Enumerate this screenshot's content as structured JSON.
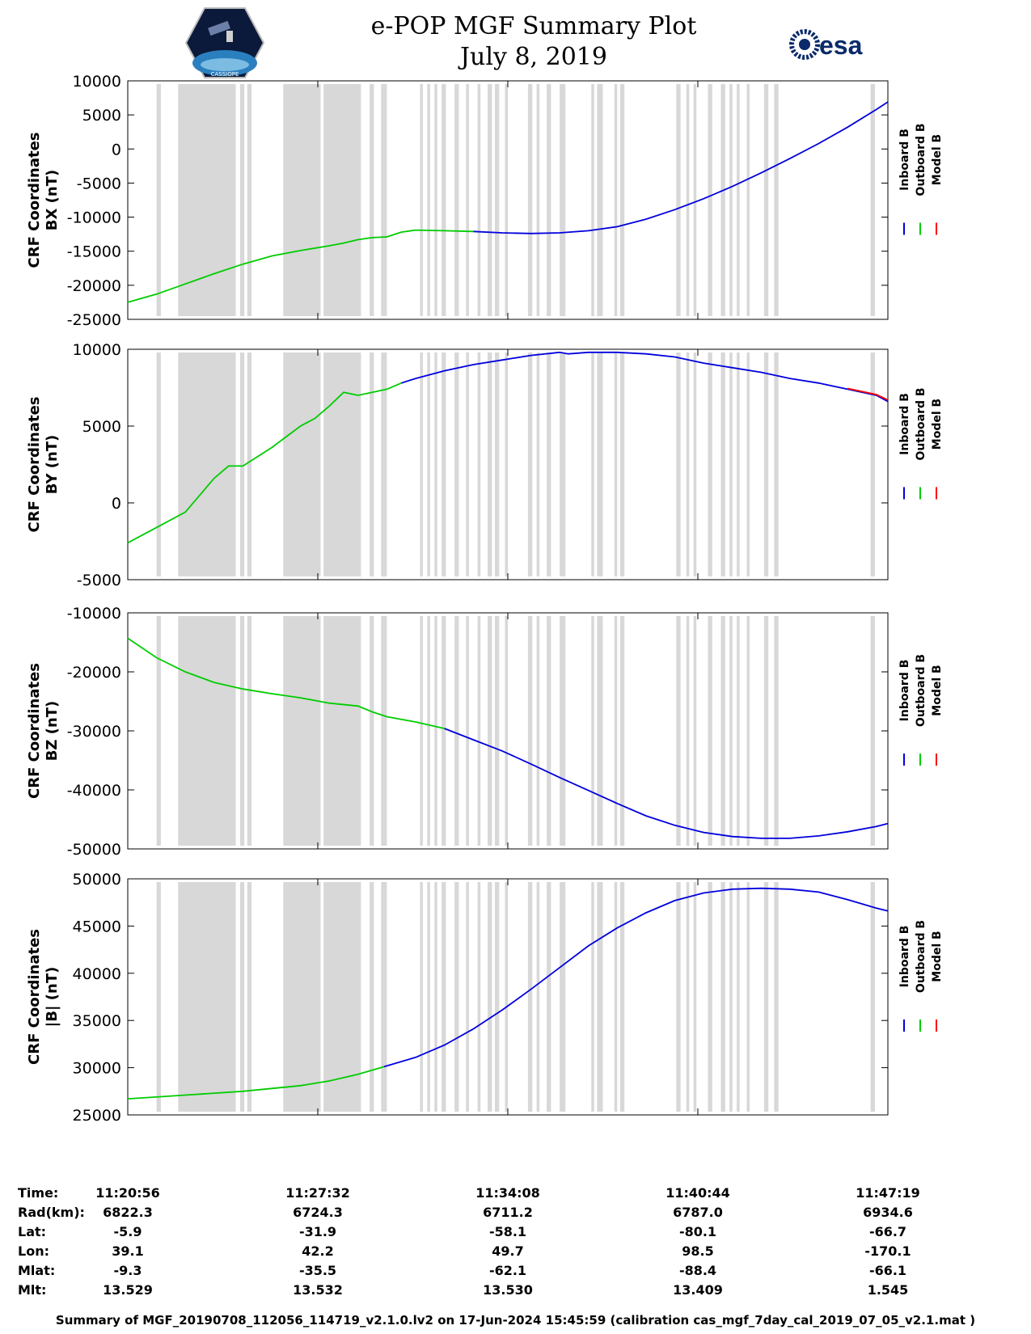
{
  "header": {
    "title": "e-POP MGF Summary Plot",
    "date": "July 8, 2019",
    "logo_left_text": "CASSIOPE",
    "logo_right_text": "esa"
  },
  "colors": {
    "inboard": "#0000dd",
    "outboard": "#00cc00",
    "model": "#ff0000",
    "gap": "#d8d8d8"
  },
  "chart_data": [
    {
      "type": "line",
      "title": "",
      "ylabel": [
        "CRF Coordinates",
        "BX (nT)"
      ],
      "ylim": [
        -25000,
        10000
      ],
      "yticks": [
        -25000,
        -20000,
        -15000,
        -10000,
        -5000,
        0,
        5000,
        10000
      ],
      "legend": [
        "Inboard B",
        "Outboard B",
        "Model B"
      ],
      "x": [
        0,
        0.5,
        1,
        2,
        3,
        4,
        5,
        6,
        7,
        8,
        9,
        10,
        10.5,
        11,
        11.5,
        12,
        12.5,
        13,
        14,
        15,
        16,
        17,
        18,
        19,
        20,
        21,
        22,
        23,
        24,
        25,
        26,
        26.4
      ],
      "series_green": [
        [
          0,
          -22500
        ],
        [
          1,
          -21300
        ],
        [
          2,
          -19800
        ],
        [
          3,
          -18300
        ],
        [
          4,
          -16900
        ],
        [
          5,
          -15700
        ],
        [
          6,
          -14900
        ],
        [
          7,
          -14200
        ],
        [
          7.5,
          -13800
        ],
        [
          8,
          -13300
        ],
        [
          8.5,
          -13000
        ],
        [
          9,
          -12900
        ],
        [
          9.5,
          -12200
        ],
        [
          10,
          -11900
        ],
        [
          11,
          -12000
        ],
        [
          12,
          -12100
        ]
      ],
      "series_blue": [
        [
          12,
          -12100
        ],
        [
          13,
          -12300
        ],
        [
          14,
          -12400
        ],
        [
          15,
          -12300
        ],
        [
          16,
          -12000
        ],
        [
          16.5,
          -11700
        ],
        [
          17,
          -11400
        ],
        [
          18,
          -10300
        ],
        [
          19,
          -8900
        ],
        [
          20,
          -7300
        ],
        [
          21,
          -5500
        ],
        [
          22,
          -3500
        ],
        [
          23,
          -1400
        ],
        [
          24,
          800
        ],
        [
          25,
          3200
        ],
        [
          26,
          5800
        ],
        [
          26.4,
          6900
        ]
      ],
      "series_red": [],
      "gaps": [
        [
          1.0,
          1.15
        ],
        [
          1.75,
          3.75
        ],
        [
          3.9,
          4.05
        ],
        [
          4.15,
          4.3
        ],
        [
          5.4,
          6.7
        ],
        [
          6.8,
          8.1
        ],
        [
          8.4,
          8.55
        ],
        [
          8.8,
          9.0
        ],
        [
          10.15,
          10.25
        ],
        [
          10.4,
          10.5
        ],
        [
          10.65,
          10.75
        ],
        [
          10.9,
          11.05
        ],
        [
          11.35,
          11.5
        ],
        [
          11.75,
          11.85
        ],
        [
          12.15,
          12.25
        ],
        [
          12.5,
          12.65
        ],
        [
          12.75,
          12.9
        ],
        [
          13.1,
          13.2
        ],
        [
          13.9,
          14.05
        ],
        [
          14.2,
          14.3
        ],
        [
          14.55,
          14.7
        ],
        [
          15.0,
          15.2
        ],
        [
          16.1,
          16.2
        ],
        [
          16.3,
          16.5
        ],
        [
          16.9,
          17.0
        ],
        [
          17.1,
          17.25
        ],
        [
          19.05,
          19.2
        ],
        [
          19.4,
          19.5
        ],
        [
          19.65,
          19.75
        ],
        [
          20.15,
          20.3
        ],
        [
          20.6,
          20.75
        ],
        [
          20.9,
          21.0
        ],
        [
          21.15,
          21.25
        ],
        [
          21.5,
          21.6
        ],
        [
          22.1,
          22.25
        ],
        [
          22.45,
          22.6
        ],
        [
          25.8,
          25.95
        ]
      ]
    },
    {
      "type": "line",
      "title": "",
      "ylabel": [
        "CRF Coordinates",
        "BY (nT)"
      ],
      "ylim": [
        -5000,
        10000
      ],
      "yticks": [
        -5000,
        0,
        5000,
        10000
      ],
      "legend": [
        "Inboard B",
        "Outboard B",
        "Model B"
      ],
      "series_green": [
        [
          0,
          -2600
        ],
        [
          1,
          -1600
        ],
        [
          2,
          -600
        ],
        [
          3,
          1600
        ],
        [
          3.5,
          2400
        ],
        [
          4,
          2400
        ],
        [
          4.5,
          3000
        ],
        [
          5,
          3600
        ],
        [
          6,
          5000
        ],
        [
          6.5,
          5500
        ],
        [
          7,
          6300
        ],
        [
          7.5,
          7200
        ],
        [
          8,
          7000
        ],
        [
          9,
          7400
        ],
        [
          9.5,
          7800
        ]
      ],
      "series_blue": [
        [
          9.5,
          7800
        ],
        [
          10,
          8100
        ],
        [
          11,
          8600
        ],
        [
          12,
          9000
        ],
        [
          13,
          9300
        ],
        [
          14,
          9600
        ],
        [
          15,
          9800
        ],
        [
          15.3,
          9700
        ],
        [
          16,
          9800
        ],
        [
          17,
          9800
        ],
        [
          18,
          9700
        ],
        [
          19,
          9500
        ],
        [
          20,
          9100
        ],
        [
          21,
          8800
        ],
        [
          22,
          8500
        ],
        [
          23,
          8100
        ],
        [
          24,
          7800
        ],
        [
          25,
          7400
        ],
        [
          26,
          7000
        ],
        [
          26.4,
          6600
        ]
      ],
      "series_red": [
        [
          25,
          7450
        ],
        [
          26,
          7050
        ],
        [
          26.4,
          6700
        ]
      ],
      "gaps": "same"
    },
    {
      "type": "line",
      "title": "",
      "ylabel": [
        "CRF Coordinates",
        "BZ (nT)"
      ],
      "ylim": [
        -50000,
        -10000
      ],
      "yticks": [
        -50000,
        -40000,
        -30000,
        -20000,
        -10000
      ],
      "legend": [
        "Inboard B",
        "Outboard B",
        "Model B"
      ],
      "series_green": [
        [
          0,
          -14300
        ],
        [
          1,
          -17600
        ],
        [
          2,
          -20000
        ],
        [
          3,
          -21800
        ],
        [
          4,
          -22900
        ],
        [
          5,
          -23700
        ],
        [
          6,
          -24400
        ],
        [
          7,
          -25300
        ],
        [
          8,
          -25800
        ],
        [
          8.5,
          -26800
        ],
        [
          9,
          -27600
        ],
        [
          10,
          -28500
        ],
        [
          11,
          -29600
        ]
      ],
      "series_blue": [
        [
          11,
          -29600
        ],
        [
          12,
          -31500
        ],
        [
          13,
          -33400
        ],
        [
          14,
          -35600
        ],
        [
          15,
          -37900
        ],
        [
          16,
          -40100
        ],
        [
          17,
          -42300
        ],
        [
          18,
          -44400
        ],
        [
          19,
          -46000
        ],
        [
          20,
          -47200
        ],
        [
          21,
          -47900
        ],
        [
          22,
          -48200
        ],
        [
          23,
          -48200
        ],
        [
          24,
          -47800
        ],
        [
          25,
          -47100
        ],
        [
          26,
          -46200
        ],
        [
          26.4,
          -45700
        ]
      ],
      "series_red": [],
      "gaps": "same"
    },
    {
      "type": "line",
      "title": "",
      "ylabel": [
        "CRF Coordinates",
        "|B| (nT)"
      ],
      "ylim": [
        25000,
        50000
      ],
      "yticks": [
        25000,
        30000,
        35000,
        40000,
        45000,
        50000
      ],
      "legend": [
        "Inboard B",
        "Outboard B",
        "Model B"
      ],
      "series_green": [
        [
          0,
          26700
        ],
        [
          2,
          27100
        ],
        [
          4,
          27500
        ],
        [
          6,
          28100
        ],
        [
          7,
          28600
        ],
        [
          8,
          29300
        ],
        [
          8.9,
          30100
        ]
      ],
      "series_blue": [
        [
          8.9,
          30100
        ],
        [
          10,
          31100
        ],
        [
          11,
          32400
        ],
        [
          12,
          34100
        ],
        [
          13,
          36100
        ],
        [
          14,
          38300
        ],
        [
          15,
          40600
        ],
        [
          16,
          42900
        ],
        [
          17,
          44800
        ],
        [
          18,
          46400
        ],
        [
          19,
          47700
        ],
        [
          20,
          48500
        ],
        [
          21,
          48900
        ],
        [
          22,
          49000
        ],
        [
          23,
          48900
        ],
        [
          24,
          48600
        ],
        [
          25,
          47800
        ],
        [
          26,
          46900
        ],
        [
          26.4,
          46600
        ]
      ],
      "series_red": [],
      "gaps": "same"
    }
  ],
  "x_axis": {
    "range_minutes": [
      0,
      26.4
    ],
    "tick_positions_minutes": [
      0,
      6.6,
      13.2,
      19.8,
      26.4
    ]
  },
  "info_table": {
    "labels": [
      "Time:",
      "Rad(km):",
      "Lat:",
      "Lon:",
      "Mlat:",
      "Mlt:"
    ],
    "columns": [
      [
        "11:20:56",
        "6822.3",
        "-5.9",
        "39.1",
        "-9.3",
        "13.529"
      ],
      [
        "11:27:32",
        "6724.3",
        "-31.9",
        "42.2",
        "-35.5",
        "13.532"
      ],
      [
        "11:34:08",
        "6711.2",
        "-58.1",
        "49.7",
        "-62.1",
        "13.530"
      ],
      [
        "11:40:44",
        "6787.0",
        "-80.1",
        "98.5",
        "-88.4",
        "13.409"
      ],
      [
        "11:47:19",
        "6934.6",
        "-66.7",
        "-170.1",
        "-66.1",
        "1.545"
      ]
    ]
  },
  "footer": "Summary of MGF_20190708_112056_114719_v2.1.0.lv2 on 17-Jun-2024 15:45:59 (calibration cas_mgf_7day_cal_2019_07_05_v2.1.mat )"
}
